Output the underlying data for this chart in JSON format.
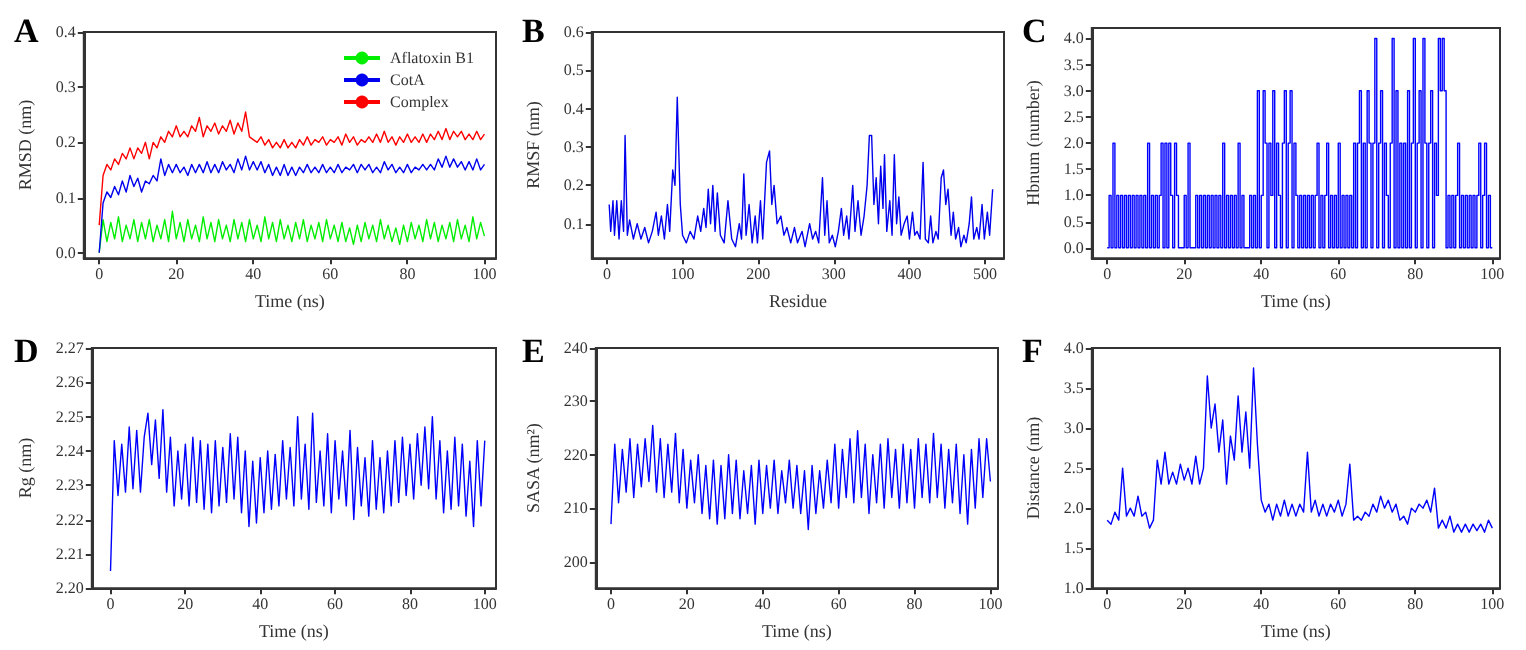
{
  "chart_data": [
    {
      "type": "line",
      "title": "A",
      "xlabel": "Time (ns)",
      "ylabel": "RMSD (nm)",
      "xlim": [
        -4,
        103
      ],
      "xticks": [
        0,
        20,
        40,
        60,
        80,
        100
      ],
      "ylim": [
        -0.01,
        0.4
      ],
      "yticks": [
        {
          "value": 0,
          "label": "0.0"
        },
        0.1,
        0.2,
        0.3,
        0.4
      ],
      "legend": "top right",
      "x": [
        0,
        1,
        2,
        3,
        4,
        5,
        6,
        7,
        8,
        9,
        10,
        11,
        12,
        13,
        14,
        15,
        16,
        17,
        18,
        19,
        20,
        21,
        22,
        23,
        24,
        25,
        26,
        27,
        28,
        29,
        30,
        31,
        32,
        33,
        34,
        35,
        36,
        37,
        38,
        39,
        40,
        41,
        42,
        43,
        44,
        45,
        46,
        47,
        48,
        49,
        50,
        51,
        52,
        53,
        54,
        55,
        56,
        57,
        58,
        59,
        60,
        61,
        62,
        63,
        64,
        65,
        66,
        67,
        68,
        69,
        70,
        71,
        72,
        73,
        74,
        75,
        76,
        77,
        78,
        79,
        80,
        81,
        82,
        83,
        84,
        85,
        86,
        87,
        88,
        89,
        90,
        91,
        92,
        93,
        94,
        95,
        96,
        97,
        98,
        99,
        100
      ],
      "series": [
        {
          "name": "Aflatoxin B1",
          "color": "#00ee00",
          "values": [
            0.0,
            0.06,
            0.02,
            0.055,
            0.025,
            0.065,
            0.02,
            0.05,
            0.025,
            0.06,
            0.02,
            0.055,
            0.025,
            0.06,
            0.02,
            0.05,
            0.025,
            0.06,
            0.02,
            0.075,
            0.025,
            0.055,
            0.02,
            0.06,
            0.025,
            0.05,
            0.02,
            0.065,
            0.025,
            0.055,
            0.02,
            0.06,
            0.025,
            0.05,
            0.02,
            0.06,
            0.025,
            0.055,
            0.02,
            0.06,
            0.025,
            0.05,
            0.02,
            0.065,
            0.025,
            0.055,
            0.02,
            0.06,
            0.025,
            0.05,
            0.02,
            0.055,
            0.025,
            0.06,
            0.02,
            0.05,
            0.025,
            0.055,
            0.02,
            0.06,
            0.025,
            0.05,
            0.02,
            0.055,
            0.02,
            0.045,
            0.015,
            0.05,
            0.02,
            0.055,
            0.025,
            0.05,
            0.02,
            0.06,
            0.025,
            0.05,
            0.02,
            0.045,
            0.015,
            0.05,
            0.02,
            0.055,
            0.025,
            0.05,
            0.02,
            0.06,
            0.025,
            0.055,
            0.02,
            0.05,
            0.025,
            0.055,
            0.02,
            0.06,
            0.025,
            0.05,
            0.02,
            0.065,
            0.025,
            0.055,
            0.03
          ]
        },
        {
          "name": "CotA",
          "color": "#0000ee",
          "values": [
            0.0,
            0.09,
            0.11,
            0.1,
            0.12,
            0.105,
            0.13,
            0.11,
            0.14,
            0.12,
            0.135,
            0.11,
            0.13,
            0.125,
            0.14,
            0.13,
            0.17,
            0.14,
            0.16,
            0.145,
            0.16,
            0.145,
            0.155,
            0.14,
            0.16,
            0.145,
            0.16,
            0.145,
            0.165,
            0.145,
            0.16,
            0.145,
            0.165,
            0.15,
            0.16,
            0.145,
            0.17,
            0.15,
            0.175,
            0.15,
            0.165,
            0.15,
            0.165,
            0.145,
            0.16,
            0.14,
            0.155,
            0.14,
            0.16,
            0.14,
            0.155,
            0.14,
            0.155,
            0.145,
            0.16,
            0.145,
            0.155,
            0.145,
            0.16,
            0.145,
            0.155,
            0.145,
            0.16,
            0.145,
            0.155,
            0.15,
            0.16,
            0.145,
            0.16,
            0.15,
            0.16,
            0.145,
            0.155,
            0.145,
            0.165,
            0.15,
            0.16,
            0.145,
            0.155,
            0.145,
            0.16,
            0.145,
            0.155,
            0.15,
            0.16,
            0.15,
            0.16,
            0.15,
            0.17,
            0.155,
            0.175,
            0.155,
            0.17,
            0.155,
            0.165,
            0.15,
            0.165,
            0.15,
            0.17,
            0.15,
            0.16
          ]
        },
        {
          "name": "Complex",
          "color": "#ff0000",
          "values": [
            0.05,
            0.14,
            0.16,
            0.15,
            0.17,
            0.16,
            0.18,
            0.17,
            0.19,
            0.17,
            0.19,
            0.18,
            0.2,
            0.17,
            0.2,
            0.19,
            0.21,
            0.2,
            0.22,
            0.21,
            0.23,
            0.21,
            0.22,
            0.21,
            0.23,
            0.22,
            0.245,
            0.21,
            0.23,
            0.22,
            0.235,
            0.215,
            0.23,
            0.22,
            0.24,
            0.215,
            0.235,
            0.22,
            0.255,
            0.21,
            0.205,
            0.2,
            0.21,
            0.195,
            0.205,
            0.19,
            0.2,
            0.19,
            0.205,
            0.19,
            0.2,
            0.19,
            0.205,
            0.195,
            0.21,
            0.195,
            0.205,
            0.2,
            0.21,
            0.195,
            0.205,
            0.2,
            0.21,
            0.195,
            0.215,
            0.2,
            0.21,
            0.195,
            0.205,
            0.2,
            0.21,
            0.2,
            0.215,
            0.2,
            0.22,
            0.2,
            0.21,
            0.195,
            0.21,
            0.2,
            0.215,
            0.2,
            0.21,
            0.2,
            0.215,
            0.2,
            0.215,
            0.205,
            0.22,
            0.205,
            0.225,
            0.205,
            0.22,
            0.21,
            0.22,
            0.205,
            0.215,
            0.205,
            0.22,
            0.205,
            0.215
          ]
        }
      ]
    },
    {
      "type": "line",
      "title": "B",
      "xlabel": "Residue",
      "ylabel": "RMSF (nm)",
      "xlim": [
        -20,
        525
      ],
      "xticks": [
        0,
        100,
        200,
        300,
        400,
        500
      ],
      "ylim": [
        0.01,
        0.6
      ],
      "yticks": [
        0.1,
        0.2,
        0.3,
        0.4,
        0.5,
        0.6
      ],
      "series": [
        {
          "color": "#0000ee",
          "x": [
            3,
            5,
            8,
            10,
            13,
            16,
            19,
            22,
            24,
            27,
            30,
            35,
            40,
            45,
            50,
            55,
            60,
            65,
            68,
            72,
            76,
            80,
            83,
            87,
            90,
            93,
            97,
            100,
            105,
            110,
            115,
            120,
            124,
            128,
            131,
            134,
            137,
            140,
            143,
            146,
            150,
            155,
            160,
            165,
            170,
            175,
            178,
            181,
            184,
            188,
            192,
            196,
            199,
            203,
            206,
            211,
            215,
            218,
            221,
            225,
            230,
            234,
            238,
            243,
            248,
            252,
            258,
            262,
            268,
            272,
            276,
            280,
            285,
            288,
            291,
            294,
            298,
            302,
            306,
            310,
            313,
            317,
            320,
            325,
            328,
            332,
            336,
            340,
            344,
            347,
            350,
            353,
            356,
            359,
            362,
            365,
            367,
            370,
            374,
            377,
            380,
            383,
            386,
            389,
            393,
            397,
            400,
            404,
            407,
            410,
            414,
            418,
            421,
            425,
            428,
            431,
            435,
            438,
            442,
            445,
            448,
            451,
            455,
            458,
            461,
            465,
            468,
            472,
            475,
            479,
            482,
            485,
            489,
            492,
            496,
            499,
            503,
            506,
            510
          ],
          "values": [
            0.15,
            0.08,
            0.16,
            0.07,
            0.16,
            0.06,
            0.16,
            0.08,
            0.33,
            0.07,
            0.11,
            0.06,
            0.1,
            0.06,
            0.09,
            0.05,
            0.08,
            0.13,
            0.07,
            0.12,
            0.06,
            0.15,
            0.08,
            0.24,
            0.2,
            0.43,
            0.15,
            0.07,
            0.05,
            0.08,
            0.06,
            0.12,
            0.08,
            0.14,
            0.09,
            0.19,
            0.1,
            0.2,
            0.08,
            0.18,
            0.07,
            0.05,
            0.16,
            0.06,
            0.04,
            0.1,
            0.06,
            0.23,
            0.07,
            0.15,
            0.05,
            0.12,
            0.05,
            0.16,
            0.06,
            0.26,
            0.29,
            0.15,
            0.2,
            0.1,
            0.12,
            0.07,
            0.09,
            0.05,
            0.09,
            0.05,
            0.08,
            0.04,
            0.1,
            0.06,
            0.08,
            0.05,
            0.22,
            0.07,
            0.16,
            0.05,
            0.07,
            0.04,
            0.08,
            0.14,
            0.07,
            0.12,
            0.06,
            0.2,
            0.08,
            0.16,
            0.07,
            0.12,
            0.2,
            0.33,
            0.33,
            0.15,
            0.22,
            0.1,
            0.25,
            0.14,
            0.28,
            0.08,
            0.16,
            0.07,
            0.28,
            0.1,
            0.17,
            0.07,
            0.1,
            0.12,
            0.06,
            0.13,
            0.07,
            0.08,
            0.06,
            0.26,
            0.06,
            0.05,
            0.12,
            0.05,
            0.08,
            0.06,
            0.22,
            0.24,
            0.15,
            0.19,
            0.07,
            0.13,
            0.06,
            0.09,
            0.04,
            0.07,
            0.05,
            0.1,
            0.17,
            0.06,
            0.09,
            0.06,
            0.15,
            0.06,
            0.13,
            0.07,
            0.19
          ]
        }
      ]
    },
    {
      "type": "step",
      "title": "C",
      "xlabel": "Time (ns)",
      "ylabel": "Hbnum (number)",
      "xlim": [
        -4,
        102
      ],
      "xticks": [
        0,
        20,
        40,
        60,
        80,
        100
      ],
      "ylim": [
        -0.2,
        4.2
      ],
      "yticks": [
        {
          "value": 0,
          "label": "0.0"
        },
        0.5,
        {
          "value": 1,
          "label": "1.0"
        },
        1.5,
        {
          "value": 2,
          "label": "2.0"
        },
        2.5,
        {
          "value": 3,
          "label": "3.0"
        },
        3.5,
        {
          "value": 4,
          "label": "4.0"
        }
      ],
      "series": [
        {
          "color": "#0000ff",
          "x": [
            0,
            0.5,
            1,
            1.5,
            2,
            2.5,
            3,
            3.5,
            4,
            4.5,
            5,
            5.5,
            6,
            6.5,
            7,
            7.5,
            8,
            8.5,
            9,
            9.5,
            10,
            10.5,
            11,
            11.5,
            12,
            12.5,
            13,
            13.5,
            14,
            14.5,
            15,
            15.5,
            16,
            16.5,
            17,
            17.5,
            18,
            18.5,
            19,
            19.5,
            20,
            20.5,
            21,
            21.5,
            22,
            22.5,
            23,
            23.5,
            24,
            24.5,
            25,
            25.5,
            26,
            26.5,
            27,
            27.5,
            28,
            28.5,
            29,
            29.5,
            30,
            30.5,
            31,
            31.5,
            32,
            32.5,
            33,
            33.5,
            34,
            34.5,
            35,
            35.5,
            36,
            36.5,
            37,
            37.5,
            38,
            38.5,
            39,
            39.5,
            40,
            40.5,
            41,
            41.5,
            42,
            42.5,
            43,
            43.5,
            44,
            44.5,
            45,
            45.5,
            46,
            46.5,
            47,
            47.5,
            48,
            48.5,
            49,
            49.5,
            50,
            50.5,
            51,
            51.5,
            52,
            52.5,
            53,
            53.5,
            54,
            54.5,
            55,
            55.5,
            56,
            56.5,
            57,
            57.5,
            58,
            58.5,
            59,
            59.5,
            60,
            60.5,
            61,
            61.5,
            62,
            62.5,
            63,
            63.5,
            64,
            64.5,
            65,
            65.5,
            66,
            66.5,
            67,
            67.5,
            68,
            68.5,
            69,
            69.5,
            70,
            70.5,
            71,
            71.5,
            72,
            72.5,
            73,
            73.5,
            74,
            74.5,
            75,
            75.5,
            76,
            76.5,
            77,
            77.5,
            78,
            78.5,
            79,
            79.5,
            80,
            80.5,
            81,
            81.5,
            82,
            82.5,
            83,
            83.5,
            84,
            84.5,
            85,
            85.5,
            86,
            86.5,
            87,
            87.5,
            88,
            88.5,
            89,
            89.5,
            90,
            90.5,
            91,
            91.5,
            92,
            92.5,
            93,
            93.5,
            94,
            94.5,
            95,
            95.5,
            96,
            96.5,
            97,
            97.5,
            98,
            98.5,
            99,
            99.5,
            100
          ],
          "values": [
            0,
            1,
            0,
            2,
            0,
            1,
            0,
            1,
            0,
            1,
            0,
            1,
            0,
            1,
            0,
            1,
            0,
            1,
            0,
            1,
            0,
            2,
            0,
            1,
            0,
            1,
            0,
            1,
            2,
            0,
            2,
            0,
            2,
            1,
            0,
            2,
            1,
            0,
            0,
            0,
            1,
            0,
            2,
            0,
            0,
            0,
            1,
            0,
            1,
            0,
            1,
            0,
            1,
            0,
            1,
            0,
            1,
            0,
            1,
            0,
            2,
            0,
            1,
            0,
            1,
            0,
            1,
            0,
            2,
            0,
            1,
            0,
            0,
            0,
            1,
            0,
            1,
            0,
            3,
            0,
            1,
            3,
            2,
            0,
            2,
            1,
            3,
            0,
            2,
            1,
            0,
            2,
            3,
            0,
            2,
            3,
            0,
            2,
            1,
            0,
            1,
            0,
            1,
            0,
            1,
            0,
            1,
            0,
            1,
            2,
            0,
            1,
            0,
            1,
            2,
            0,
            1,
            0,
            1,
            0,
            2,
            0,
            1,
            0,
            1,
            0,
            1,
            0,
            2,
            0,
            2,
            3,
            0,
            2,
            0,
            3,
            2,
            0,
            2,
            4,
            0,
            2,
            3,
            0,
            2,
            1,
            0,
            2,
            4,
            0,
            3,
            0,
            2,
            0,
            2,
            0,
            3,
            0,
            2,
            4,
            0,
            2,
            3,
            0,
            4,
            2,
            0,
            2,
            3,
            0,
            2,
            1,
            4,
            3,
            4,
            3,
            0,
            1,
            0,
            1,
            0,
            1,
            2,
            0,
            1,
            0,
            1,
            0,
            1,
            0,
            1,
            0,
            1,
            2,
            0,
            1,
            2,
            0,
            1,
            0,
            0
          ]
        }
      ]
    },
    {
      "type": "line",
      "title": "D",
      "xlabel": "Time (ns)",
      "ylabel": "Rg (nm)",
      "xlim": [
        -5,
        103
      ],
      "xticks": [
        0,
        20,
        40,
        60,
        80,
        100
      ],
      "ylim": [
        2.2,
        2.27
      ],
      "yticks": [
        {
          "value": 2.2,
          "label": "2.20"
        },
        2.21,
        2.22,
        2.23,
        2.24,
        2.25,
        2.26,
        2.27
      ],
      "x": [
        0,
        1,
        2,
        3,
        4,
        5,
        6,
        7,
        8,
        9,
        10,
        11,
        12,
        13,
        14,
        15,
        16,
        17,
        18,
        19,
        20,
        21,
        22,
        23,
        24,
        25,
        26,
        27,
        28,
        29,
        30,
        31,
        32,
        33,
        34,
        35,
        36,
        37,
        38,
        39,
        40,
        41,
        42,
        43,
        44,
        45,
        46,
        47,
        48,
        49,
        50,
        51,
        52,
        53,
        54,
        55,
        56,
        57,
        58,
        59,
        60,
        61,
        62,
        63,
        64,
        65,
        66,
        67,
        68,
        69,
        70,
        71,
        72,
        73,
        74,
        75,
        76,
        77,
        78,
        79,
        80,
        81,
        82,
        83,
        84,
        85,
        86,
        87,
        88,
        89,
        90,
        91,
        92,
        93,
        94,
        95,
        96,
        97,
        98,
        99,
        100
      ],
      "series": [
        {
          "color": "#0000ff",
          "values": [
            2.205,
            2.243,
            2.227,
            2.242,
            2.228,
            2.247,
            2.229,
            2.246,
            2.228,
            2.244,
            2.251,
            2.236,
            2.249,
            2.232,
            2.252,
            2.228,
            2.244,
            2.224,
            2.24,
            2.226,
            2.242,
            2.224,
            2.244,
            2.225,
            2.243,
            2.223,
            2.242,
            2.222,
            2.243,
            2.224,
            2.241,
            2.225,
            2.245,
            2.226,
            2.244,
            2.222,
            2.24,
            2.218,
            2.237,
            2.219,
            2.238,
            2.222,
            2.24,
            2.223,
            2.239,
            2.224,
            2.243,
            2.226,
            2.241,
            2.224,
            2.25,
            2.226,
            2.242,
            2.223,
            2.251,
            2.225,
            2.24,
            2.224,
            2.245,
            2.222,
            2.243,
            2.226,
            2.24,
            2.224,
            2.246,
            2.22,
            2.241,
            2.224,
            2.238,
            2.221,
            2.243,
            2.223,
            2.238,
            2.222,
            2.24,
            2.224,
            2.243,
            2.225,
            2.244,
            2.227,
            2.242,
            2.226,
            2.245,
            2.23,
            2.247,
            2.229,
            2.25,
            2.226,
            2.243,
            2.222,
            2.24,
            2.223,
            2.244,
            2.224,
            2.242,
            2.221,
            2.237,
            2.218,
            2.243,
            2.224,
            2.243
          ]
        }
      ]
    },
    {
      "type": "line",
      "title": "E",
      "xlabel": "Time (ns)",
      "ylabel": "SASA (nm²)",
      "xlim": [
        -4,
        102
      ],
      "xticks": [
        0,
        20,
        40,
        60,
        80,
        100
      ],
      "ylim": [
        195,
        240
      ],
      "yticks": [
        200,
        210,
        220,
        230,
        240
      ],
      "x": [
        0,
        1,
        2,
        3,
        4,
        5,
        6,
        7,
        8,
        9,
        10,
        11,
        12,
        13,
        14,
        15,
        16,
        17,
        18,
        19,
        20,
        21,
        22,
        23,
        24,
        25,
        26,
        27,
        28,
        29,
        30,
        31,
        32,
        33,
        34,
        35,
        36,
        37,
        38,
        39,
        40,
        41,
        42,
        43,
        44,
        45,
        46,
        47,
        48,
        49,
        50,
        51,
        52,
        53,
        54,
        55,
        56,
        57,
        58,
        59,
        60,
        61,
        62,
        63,
        64,
        65,
        66,
        67,
        68,
        69,
        70,
        71,
        72,
        73,
        74,
        75,
        76,
        77,
        78,
        79,
        80,
        81,
        82,
        83,
        84,
        85,
        86,
        87,
        88,
        89,
        90,
        91,
        92,
        93,
        94,
        95,
        96,
        97,
        98,
        99,
        100
      ],
      "series": [
        {
          "color": "#0000ff",
          "values": [
            207,
            222,
            211,
            221,
            213,
            223,
            212,
            222,
            214,
            223,
            215,
            225.5,
            213,
            223,
            212,
            222,
            213,
            224,
            211,
            221,
            210,
            219,
            211,
            220,
            209,
            218,
            208,
            219,
            207,
            218,
            208,
            220,
            209,
            219,
            208,
            217,
            209,
            218,
            207,
            219,
            209,
            218,
            210,
            219,
            209,
            217,
            211,
            219,
            210,
            218,
            209,
            217,
            206,
            218,
            209,
            217,
            210,
            219,
            211,
            222,
            210,
            221,
            212,
            223,
            211,
            224.5,
            212,
            222,
            209,
            220,
            211,
            222,
            210,
            223,
            212,
            221,
            210,
            222,
            211,
            221,
            210,
            223,
            212,
            222,
            211,
            224,
            212,
            222,
            210,
            221,
            211,
            222,
            209,
            220,
            207,
            221,
            210,
            223,
            212,
            223,
            215
          ]
        }
      ]
    },
    {
      "type": "line",
      "title": "F",
      "xlabel": "Time (ns)",
      "ylabel": "Distance (nm)",
      "xlim": [
        -4,
        102
      ],
      "xticks": [
        0,
        20,
        40,
        60,
        80,
        100
      ],
      "ylim": [
        1,
        4
      ],
      "yticks": [
        {
          "value": 1,
          "label": "1.0"
        },
        1.5,
        {
          "value": 2,
          "label": "2.0"
        },
        2.5,
        {
          "value": 3,
          "label": "3.0"
        },
        3.5,
        {
          "value": 4,
          "label": "4.0"
        }
      ],
      "x": [
        0,
        1,
        2,
        3,
        4,
        5,
        6,
        7,
        8,
        9,
        10,
        11,
        12,
        13,
        14,
        15,
        16,
        17,
        18,
        19,
        20,
        21,
        22,
        23,
        24,
        25,
        26,
        27,
        28,
        29,
        30,
        31,
        32,
        33,
        34,
        35,
        36,
        37,
        38,
        39,
        40,
        41,
        42,
        43,
        44,
        45,
        46,
        47,
        48,
        49,
        50,
        51,
        52,
        53,
        54,
        55,
        56,
        57,
        58,
        59,
        60,
        61,
        62,
        63,
        64,
        65,
        66,
        67,
        68,
        69,
        70,
        71,
        72,
        73,
        74,
        75,
        76,
        77,
        78,
        79,
        80,
        81,
        82,
        83,
        84,
        85,
        86,
        87,
        88,
        89,
        90,
        91,
        92,
        93,
        94,
        95,
        96,
        97,
        98,
        99,
        100
      ],
      "series": [
        {
          "color": "#0000ff",
          "values": [
            1.85,
            1.8,
            1.95,
            1.85,
            2.5,
            1.9,
            2.0,
            1.9,
            2.15,
            1.9,
            1.95,
            1.75,
            1.85,
            2.6,
            2.3,
            2.7,
            2.3,
            2.45,
            2.3,
            2.55,
            2.35,
            2.5,
            2.3,
            2.65,
            2.3,
            2.5,
            3.65,
            3.0,
            3.3,
            2.7,
            3.1,
            2.3,
            2.9,
            2.6,
            3.4,
            2.7,
            3.2,
            2.5,
            3.75,
            2.8,
            2.1,
            1.95,
            2.05,
            1.85,
            2.05,
            1.9,
            2.1,
            1.9,
            2.05,
            1.9,
            2.05,
            1.95,
            2.7,
            1.95,
            2.1,
            1.9,
            2.05,
            1.9,
            2.05,
            1.95,
            2.1,
            1.9,
            2.05,
            2.55,
            1.85,
            1.9,
            1.85,
            1.95,
            1.9,
            2.05,
            1.95,
            2.15,
            2.0,
            2.1,
            1.95,
            2.05,
            1.85,
            1.9,
            1.8,
            2.0,
            1.95,
            2.05,
            2.0,
            2.1,
            1.95,
            2.25,
            1.75,
            1.85,
            1.75,
            1.9,
            1.7,
            1.8,
            1.7,
            1.8,
            1.7,
            1.8,
            1.72,
            1.8,
            1.7,
            1.85,
            1.75
          ]
        }
      ]
    }
  ]
}
